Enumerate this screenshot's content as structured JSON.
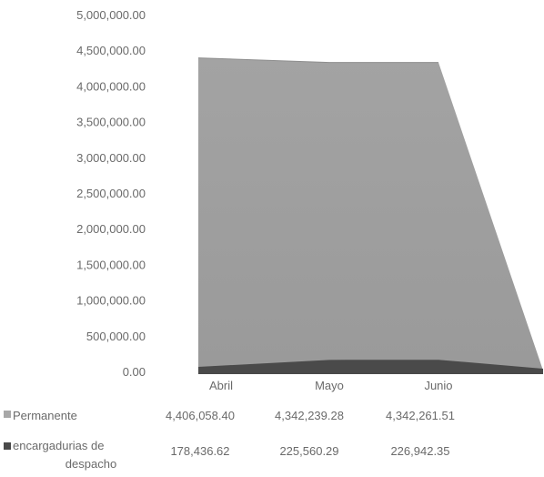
{
  "chart_data": {
    "type": "area",
    "y_ticks": [
      "5,000,000.00",
      "4,500,000.00",
      "4,000,000.00",
      "3,500,000.00",
      "3,000,000.00",
      "2,500,000.00",
      "2,000,000.00",
      "1,500,000.00",
      "1,000,000.00",
      "500,000.00",
      "0.00"
    ],
    "ylim": [
      0,
      5000000
    ],
    "categories": [
      "Abril",
      "Mayo",
      "Junio"
    ],
    "series": [
      {
        "name": "Permanente",
        "values": [
          4406058.4,
          4342239.28,
          4342261.51
        ],
        "value_labels": [
          "4,406,058.40",
          "4,342,239.28",
          "4,342,261.51"
        ],
        "color": "#a8a8a8",
        "legend_lines": [
          "Permanente"
        ]
      },
      {
        "name": "encargadurias de despacho",
        "values": [
          178436.62,
          225560.29,
          226942.35
        ],
        "value_labels": [
          "178,436.62",
          "225,560.29",
          "226,942.35"
        ],
        "color": "#4a4a4a",
        "legend_lines": [
          "encargadurias de",
          "despacho"
        ]
      }
    ],
    "legend_position": "data-table-below",
    "grid": false,
    "style": "3d-area"
  }
}
